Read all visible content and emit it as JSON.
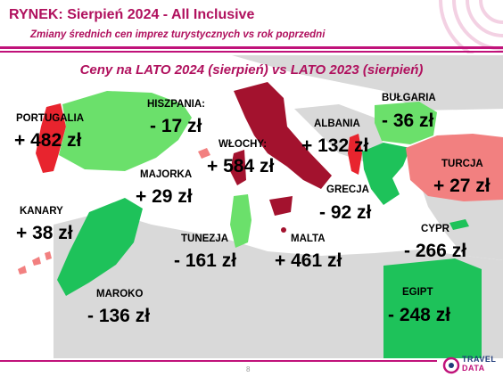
{
  "header": {
    "title": "RYNEK: Sierpień 2024 - All Inclusive",
    "subtitle": "Zmiany średnich cen imprez turystycznych vs rok poprzedni"
  },
  "map": {
    "title": "Ceny na LATO 2024 (sierpień) vs  LATO 2023 (sierpień)",
    "colors": {
      "increase": "#e8242e",
      "increase_dark": "#a3122e",
      "increase_light": "#f28080",
      "decrease_strong": "#1ec25a",
      "decrease": "#6be06b",
      "land": "#d9d9d9",
      "sea": "#ffffff"
    },
    "countries": [
      {
        "name": "PORTUGALIA",
        "value": "+ 482 zł"
      },
      {
        "name": "HISZPANIA:",
        "value": "- 17 zł"
      },
      {
        "name": "WŁOCHY:",
        "value": "+ 584 zł"
      },
      {
        "name": "ALBANIA",
        "value": "+ 132 zł"
      },
      {
        "name": "BUŁGARIA",
        "value": "- 36 zł"
      },
      {
        "name": "TURCJA",
        "value": "+ 27 zł"
      },
      {
        "name": "MAJORKA",
        "value": "+ 29 zł"
      },
      {
        "name": "GRECJA",
        "value": "- 92 zł"
      },
      {
        "name": "KANARY",
        "value": "+ 38 zł"
      },
      {
        "name": "TUNEZJA",
        "value": "- 161 zł"
      },
      {
        "name": "MALTA",
        "value": "+ 461 zł"
      },
      {
        "name": "CYPR",
        "value": "- 266 zł"
      },
      {
        "name": "MAROKO",
        "value": "- 136 zł"
      },
      {
        "name": "EGIPT",
        "value": "- 248 zł"
      }
    ]
  },
  "footer": {
    "page_number": "8",
    "logo_top": "TRAVEL",
    "logo_bottom": "DATA"
  }
}
